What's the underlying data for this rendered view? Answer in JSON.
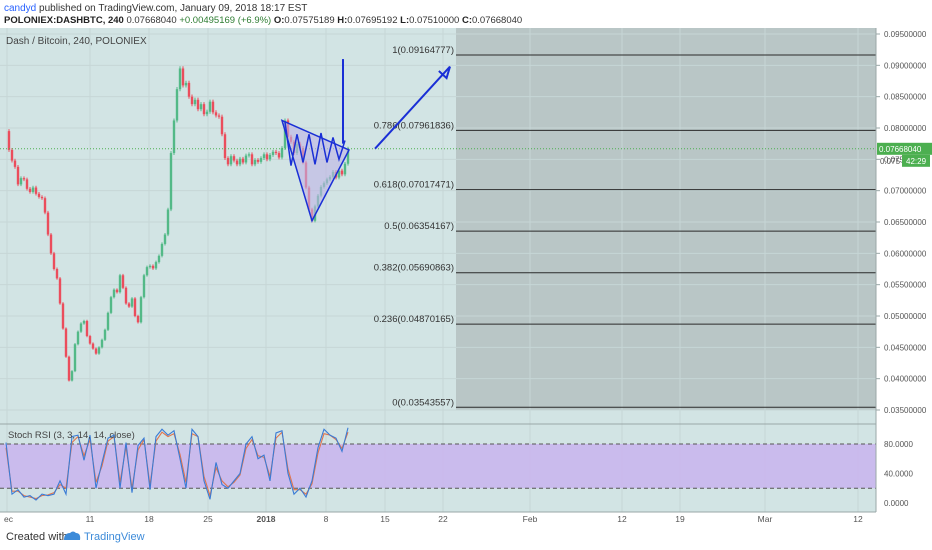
{
  "header": {
    "author": "candyd",
    "published_text": "published on TradingView.com, January 09, 2018 18:17 EST",
    "symbol": "POLONIEX:DASHBTC, 240",
    "last": "0.07668040",
    "change": "+0.00495169 (+6.9%)",
    "o_label": "O:",
    "o": "0.07575189",
    "h_label": "H:",
    "h": "0.07695192",
    "l_label": "L:",
    "l": "0.07510000",
    "c_label": "C:",
    "c": "0.07668040"
  },
  "chart_data": {
    "type": "candlestick",
    "title": "Dash / Bitcoin, 240, POLONIEX",
    "ylim": [
      0.033,
      0.0958
    ],
    "y_ticks": [
      "0.09500000",
      "0.09000000",
      "0.08500000",
      "0.08000000",
      "0.07500000",
      "0.07000000",
      "0.06500000",
      "0.06000000",
      "0.05500000",
      "0.05000000",
      "0.04500000",
      "0.04000000",
      "0.03500000"
    ],
    "y_tick_values": [
      0.095,
      0.09,
      0.085,
      0.08,
      0.075,
      0.07,
      0.065,
      0.06,
      0.055,
      0.05,
      0.045,
      0.04,
      0.035
    ],
    "x_tick_labels": [
      "ec",
      "11",
      "18",
      "25",
      "2018",
      "8",
      "15",
      "22",
      "Feb",
      "12",
      "19",
      "Mar",
      "12"
    ],
    "current_price": {
      "value": 0.0766804,
      "label": "0.07668040",
      "countdown": "42:29",
      "partial_label": "0.075"
    },
    "price_series": [
      [
        0,
        0.0795
      ],
      [
        3,
        0.0765
      ],
      [
        6,
        0.0748
      ],
      [
        9,
        0.0738
      ],
      [
        12,
        0.071
      ],
      [
        15,
        0.072
      ],
      [
        18,
        0.0718
      ],
      [
        21,
        0.0703
      ],
      [
        24,
        0.0698
      ],
      [
        27,
        0.0705
      ],
      [
        30,
        0.0695
      ],
      [
        33,
        0.069
      ],
      [
        36,
        0.0688
      ],
      [
        39,
        0.0665
      ],
      [
        42,
        0.063
      ],
      [
        45,
        0.06
      ],
      [
        48,
        0.0575
      ],
      [
        51,
        0.056
      ],
      [
        54,
        0.052
      ],
      [
        57,
        0.048
      ],
      [
        60,
        0.0435
      ],
      [
        63,
        0.0397
      ],
      [
        66,
        0.0412
      ],
      [
        69,
        0.0455
      ],
      [
        72,
        0.0475
      ],
      [
        75,
        0.0488
      ],
      [
        78,
        0.0492
      ],
      [
        81,
        0.0468
      ],
      [
        84,
        0.0456
      ],
      [
        87,
        0.0448
      ],
      [
        90,
        0.044
      ],
      [
        93,
        0.045
      ],
      [
        96,
        0.0462
      ],
      [
        99,
        0.0478
      ],
      [
        102,
        0.0505
      ],
      [
        105,
        0.053
      ],
      [
        108,
        0.0542
      ],
      [
        111,
        0.0538
      ],
      [
        114,
        0.0565
      ],
      [
        117,
        0.0545
      ],
      [
        120,
        0.052
      ],
      [
        123,
        0.0515
      ],
      [
        126,
        0.0528
      ],
      [
        129,
        0.05
      ],
      [
        132,
        0.049
      ],
      [
        135,
        0.053
      ],
      [
        138,
        0.0565
      ],
      [
        141,
        0.0578
      ],
      [
        144,
        0.058
      ],
      [
        147,
        0.0576
      ],
      [
        150,
        0.0586
      ],
      [
        153,
        0.0596
      ],
      [
        156,
        0.0615
      ],
      [
        159,
        0.063
      ],
      [
        162,
        0.067
      ],
      [
        165,
        0.076
      ],
      [
        168,
        0.0812
      ],
      [
        171,
        0.0862
      ],
      [
        174,
        0.0895
      ],
      [
        177,
        0.0868
      ],
      [
        180,
        0.0872
      ],
      [
        183,
        0.085
      ],
      [
        186,
        0.0838
      ],
      [
        189,
        0.0845
      ],
      [
        192,
        0.083
      ],
      [
        195,
        0.0838
      ],
      [
        198,
        0.0822
      ],
      [
        201,
        0.0826
      ],
      [
        204,
        0.0842
      ],
      [
        207,
        0.0825
      ],
      [
        210,
        0.082
      ],
      [
        213,
        0.0818
      ],
      [
        216,
        0.079
      ],
      [
        219,
        0.0752
      ],
      [
        222,
        0.0742
      ],
      [
        225,
        0.0755
      ],
      [
        228,
        0.0748
      ],
      [
        231,
        0.0742
      ],
      [
        234,
        0.0751
      ],
      [
        237,
        0.0745
      ],
      [
        240,
        0.0756
      ],
      [
        243,
        0.0758
      ],
      [
        246,
        0.0742
      ],
      [
        249,
        0.0749
      ],
      [
        252,
        0.0746
      ],
      [
        255,
        0.0752
      ],
      [
        258,
        0.0758
      ],
      [
        261,
        0.075
      ],
      [
        264,
        0.0757
      ],
      [
        267,
        0.0762
      ],
      [
        270,
        0.076
      ],
      [
        273,
        0.0753
      ],
      [
        276,
        0.0768
      ],
      [
        279,
        0.0812
      ],
      [
        282,
        0.0786
      ],
      [
        285,
        0.0778
      ],
      [
        288,
        0.076
      ],
      [
        291,
        0.0775
      ],
      [
        294,
        0.0768
      ],
      [
        297,
        0.0745
      ],
      [
        300,
        0.0705
      ],
      [
        303,
        0.067
      ],
      [
        306,
        0.0652
      ],
      [
        309,
        0.0675
      ],
      [
        312,
        0.0692
      ],
      [
        315,
        0.0706
      ],
      [
        318,
        0.0712
      ],
      [
        321,
        0.0718
      ],
      [
        324,
        0.0722
      ],
      [
        327,
        0.073
      ],
      [
        330,
        0.0721
      ],
      [
        333,
        0.0732
      ],
      [
        336,
        0.0726
      ],
      [
        339,
        0.0743
      ],
      [
        342,
        0.0767
      ]
    ],
    "fibonacci": [
      {
        "ratio": "1",
        "label": "1(0.09164777)",
        "value": 0.09164777
      },
      {
        "ratio": "0.786",
        "label": "0.786(0.07961836)",
        "value": 0.07961836
      },
      {
        "ratio": "0.618",
        "label": "0.618(0.07017471)",
        "value": 0.07017471
      },
      {
        "ratio": "0.5",
        "label": "0.5(0.06354167)",
        "value": 0.06354167
      },
      {
        "ratio": "0.382",
        "label": "0.382(0.05690863)",
        "value": 0.05690863
      },
      {
        "ratio": "0.236",
        "label": "0.236(0.04870165)",
        "value": 0.04870165
      },
      {
        "ratio": "0",
        "label": "0(0.03543557)",
        "value": 0.03543557
      }
    ],
    "indicator": {
      "title": "Stoch RSI (3, 3, 14, 14, close)",
      "ylim": [
        -5,
        110
      ],
      "band": [
        20,
        80
      ],
      "y_ticks": [
        "80.0000",
        "40.0000",
        "0.0000"
      ],
      "y_tick_values": [
        80,
        40,
        0
      ],
      "k": [
        [
          0,
          82
        ],
        [
          6,
          12
        ],
        [
          12,
          18
        ],
        [
          18,
          8
        ],
        [
          24,
          10
        ],
        [
          30,
          4
        ],
        [
          36,
          12
        ],
        [
          42,
          10
        ],
        [
          48,
          12
        ],
        [
          54,
          30
        ],
        [
          60,
          12
        ],
        [
          66,
          90
        ],
        [
          72,
          92
        ],
        [
          78,
          58
        ],
        [
          84,
          92
        ],
        [
          90,
          20
        ],
        [
          96,
          55
        ],
        [
          102,
          88
        ],
        [
          108,
          92
        ],
        [
          114,
          20
        ],
        [
          120,
          82
        ],
        [
          126,
          14
        ],
        [
          132,
          78
        ],
        [
          138,
          88
        ],
        [
          144,
          18
        ],
        [
          150,
          90
        ],
        [
          156,
          100
        ],
        [
          162,
          92
        ],
        [
          168,
          98
        ],
        [
          174,
          60
        ],
        [
          180,
          20
        ],
        [
          186,
          100
        ],
        [
          192,
          90
        ],
        [
          198,
          30
        ],
        [
          204,
          5
        ],
        [
          210,
          55
        ],
        [
          216,
          25
        ],
        [
          222,
          20
        ],
        [
          228,
          30
        ],
        [
          234,
          40
        ],
        [
          240,
          80
        ],
        [
          246,
          90
        ],
        [
          252,
          60
        ],
        [
          258,
          65
        ],
        [
          264,
          30
        ],
        [
          270,
          95
        ],
        [
          276,
          98
        ],
        [
          282,
          40
        ],
        [
          288,
          12
        ],
        [
          294,
          20
        ],
        [
          300,
          8
        ],
        [
          306,
          30
        ],
        [
          312,
          75
        ],
        [
          318,
          100
        ],
        [
          324,
          92
        ],
        [
          330,
          88
        ],
        [
          336,
          70
        ],
        [
          342,
          102
        ]
      ],
      "d": [
        [
          0,
          75
        ],
        [
          6,
          16
        ],
        [
          12,
          16
        ],
        [
          18,
          10
        ],
        [
          24,
          8
        ],
        [
          30,
          6
        ],
        [
          36,
          10
        ],
        [
          42,
          11
        ],
        [
          48,
          14
        ],
        [
          54,
          25
        ],
        [
          60,
          20
        ],
        [
          66,
          82
        ],
        [
          72,
          90
        ],
        [
          78,
          64
        ],
        [
          84,
          86
        ],
        [
          90,
          28
        ],
        [
          96,
          50
        ],
        [
          102,
          84
        ],
        [
          108,
          90
        ],
        [
          114,
          28
        ],
        [
          120,
          76
        ],
        [
          126,
          20
        ],
        [
          132,
          72
        ],
        [
          138,
          86
        ],
        [
          144,
          24
        ],
        [
          150,
          84
        ],
        [
          156,
          96
        ],
        [
          162,
          90
        ],
        [
          168,
          94
        ],
        [
          174,
          66
        ],
        [
          180,
          28
        ],
        [
          186,
          94
        ],
        [
          192,
          90
        ],
        [
          198,
          36
        ],
        [
          204,
          10
        ],
        [
          210,
          48
        ],
        [
          216,
          30
        ],
        [
          222,
          22
        ],
        [
          228,
          28
        ],
        [
          234,
          38
        ],
        [
          240,
          74
        ],
        [
          246,
          86
        ],
        [
          252,
          64
        ],
        [
          258,
          62
        ],
        [
          264,
          36
        ],
        [
          270,
          88
        ],
        [
          276,
          96
        ],
        [
          282,
          46
        ],
        [
          288,
          18
        ],
        [
          294,
          18
        ],
        [
          300,
          12
        ],
        [
          306,
          26
        ],
        [
          312,
          68
        ],
        [
          318,
          94
        ],
        [
          324,
          92
        ],
        [
          330,
          86
        ],
        [
          336,
          74
        ],
        [
          342,
          96
        ]
      ]
    },
    "annotations": {
      "triangle": [
        [
          276,
          0.0812
        ],
        [
          343,
          0.0765
        ],
        [
          306,
          0.0652
        ]
      ],
      "zigzag": [
        [
          279,
          0.081
        ],
        [
          285,
          0.074
        ],
        [
          291,
          0.079
        ],
        [
          297,
          0.0745
        ],
        [
          303,
          0.079
        ],
        [
          309,
          0.0742
        ],
        [
          315,
          0.0792
        ],
        [
          321,
          0.0745
        ],
        [
          327,
          0.0785
        ],
        [
          333,
          0.075
        ],
        [
          339,
          0.078
        ]
      ],
      "vertical_line": {
        "x": 337,
        "from": 0.0775,
        "to": 0.091
      },
      "arrow": {
        "from": [
          375,
          0.0767
        ],
        "to": [
          450,
          0.0898
        ]
      }
    }
  },
  "footer": {
    "created_with": "Created with",
    "brand": "TradingView"
  },
  "colors": {
    "bull": "#53b987",
    "bear": "#eb4d5c",
    "annotation": "#1a2fd6",
    "band": "#c9b4ee",
    "k": "#3a7bd5",
    "d": "#e0744d",
    "price_badge": "#4caf50",
    "shade": "#b9c6c6"
  }
}
